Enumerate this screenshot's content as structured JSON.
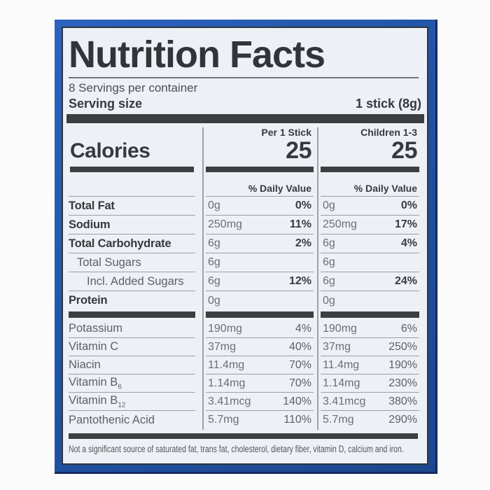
{
  "header": {
    "title": "Nutrition Facts",
    "servings": "8 Servings per container",
    "serving_size_label": "Serving size",
    "serving_size_value": "1 stick (8g)"
  },
  "calories": {
    "word": "Calories",
    "col2_header": "Per 1 Stick",
    "col3_header": "Children 1-3",
    "col2_value": "25",
    "col3_value": "25",
    "daily_value_label": "% Daily Value"
  },
  "nutrients": [
    {
      "name": "Total Fat",
      "v1": "0g",
      "p1": "0%",
      "v2": "0g",
      "p2": "0%"
    },
    {
      "name": "Sodium",
      "v1": "250mg",
      "p1": "11%",
      "v2": "250mg",
      "p2": "17%"
    },
    {
      "name": "Total Carbohydrate",
      "v1": "6g",
      "p1": "2%",
      "v2": "6g",
      "p2": "4%"
    },
    {
      "name": "Total Sugars",
      "v1": "6g",
      "v2": "6g"
    },
    {
      "name": "Incl. Added Sugars",
      "v1": "6g",
      "p1": "12%",
      "v2": "6g",
      "p2": "24%"
    },
    {
      "name": "Protein",
      "v1": "0g",
      "v2": "0g"
    }
  ],
  "vitamins": [
    {
      "name": "Potassium",
      "v1": "190mg",
      "p1": "4%",
      "v2": "190mg",
      "p2": "6%"
    },
    {
      "name": "Vitamin C",
      "v1": "37mg",
      "p1": "40%",
      "v2": "37mg",
      "p2": "250%"
    },
    {
      "name": "Niacin",
      "v1": "11.4mg",
      "p1": "70%",
      "v2": "11.4mg",
      "p2": "190%"
    },
    {
      "name": "Vitamin B",
      "name_sub": "6",
      "v1": "1.14mg",
      "p1": "70%",
      "v2": "1.14mg",
      "p2": "230%"
    },
    {
      "name": "Vitamin B",
      "name_sub": "12",
      "v1": "3.41mcg",
      "p1": "140%",
      "v2": "3.41mcg",
      "p2": "380%"
    },
    {
      "name": "Pantothenic Acid",
      "v1": "5.7mg",
      "p1": "110%",
      "v2": "5.7mg",
      "p2": "290%"
    }
  ],
  "footnote": "Not a significant source of saturated fat, trans fat, cholesterol, dietary fiber, vitamin D, calcium and iron.",
  "colors": {
    "frame_blue": "#2156a9",
    "frame_dark_edge": "#16295e",
    "label_background": "#edf0f4",
    "text_dark": "#36393d",
    "text_gray": "#5d6166",
    "rule_gray": "#99a1a9",
    "bar_dark": "#3c3e40"
  }
}
